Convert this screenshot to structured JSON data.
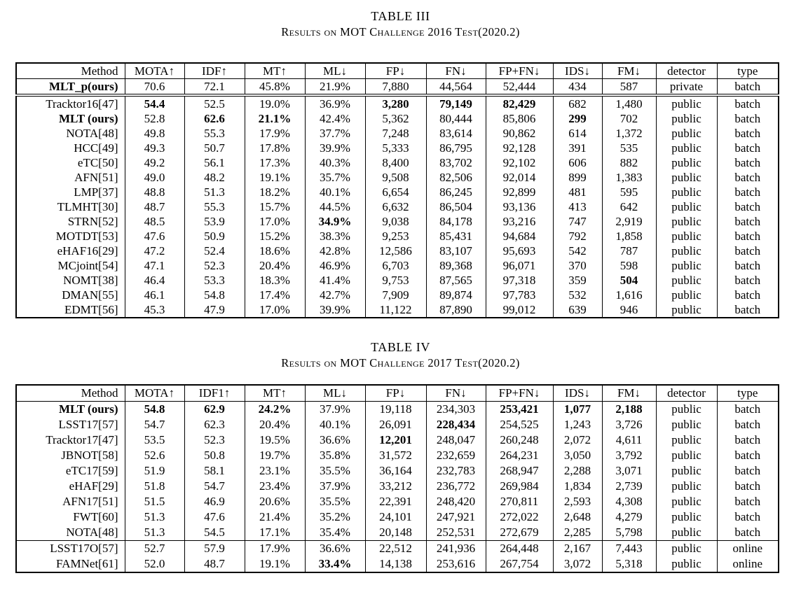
{
  "colors": {
    "text": "#000000",
    "background": "#ffffff",
    "border": "#000000"
  },
  "tables": [
    {
      "caption_title": "TABLE III",
      "caption_subtitle": "Results on MOT Challenge 2016 Test(2020.2)",
      "headers": [
        "Method",
        "MOTA↑",
        "IDF↑",
        "MT↑",
        "ML↓",
        "FP↓",
        "FN↓",
        "FP+FN↓",
        "IDS↓",
        "FM↓",
        "detector",
        "type"
      ],
      "rows": [
        {
          "cells": [
            "MLT_p(ours)",
            "70.6",
            "72.1",
            "45.8%",
            "21.9%",
            "7,880",
            "44,564",
            "52,444",
            "434",
            "587",
            "private",
            "batch"
          ],
          "bold": [
            0
          ],
          "rule_below": "double"
        },
        {
          "cells": [
            "Tracktor16[47]",
            "54.4",
            "52.5",
            "19.0%",
            "36.9%",
            "3,280",
            "79,149",
            "82,429",
            "682",
            "1,480",
            "public",
            "batch"
          ],
          "bold": [
            1,
            5,
            6,
            7
          ]
        },
        {
          "cells": [
            "MLT (ours)",
            "52.8",
            "62.6",
            "21.1%",
            "42.4%",
            "5,362",
            "80,444",
            "85,806",
            "299",
            "702",
            "public",
            "batch"
          ],
          "bold": [
            0,
            2,
            3,
            8
          ]
        },
        {
          "cells": [
            "NOTA[48]",
            "49.8",
            "55.3",
            "17.9%",
            "37.7%",
            "7,248",
            "83,614",
            "90,862",
            "614",
            "1,372",
            "public",
            "batch"
          ],
          "bold": []
        },
        {
          "cells": [
            "HCC[49]",
            "49.3",
            "50.7",
            "17.8%",
            "39.9%",
            "5,333",
            "86,795",
            "92,128",
            "391",
            "535",
            "public",
            "batch"
          ],
          "bold": []
        },
        {
          "cells": [
            "eTC[50]",
            "49.2",
            "56.1",
            "17.3%",
            "40.3%",
            "8,400",
            "83,702",
            "92,102",
            "606",
            "882",
            "public",
            "batch"
          ],
          "bold": []
        },
        {
          "cells": [
            "AFN[51]",
            "49.0",
            "48.2",
            "19.1%",
            "35.7%",
            "9,508",
            "82,506",
            "92,014",
            "899",
            "1,383",
            "public",
            "batch"
          ],
          "bold": []
        },
        {
          "cells": [
            "LMP[37]",
            "48.8",
            "51.3",
            "18.2%",
            "40.1%",
            "6,654",
            "86,245",
            "92,899",
            "481",
            "595",
            "public",
            "batch"
          ],
          "bold": []
        },
        {
          "cells": [
            "TLMHT[30]",
            "48.7",
            "55.3",
            "15.7%",
            "44.5%",
            "6,632",
            "86,504",
            "93,136",
            "413",
            "642",
            "public",
            "batch"
          ],
          "bold": []
        },
        {
          "cells": [
            "STRN[52]",
            "48.5",
            "53.9",
            "17.0%",
            "34.9%",
            "9,038",
            "84,178",
            "93,216",
            "747",
            "2,919",
            "public",
            "batch"
          ],
          "bold": [
            4
          ]
        },
        {
          "cells": [
            "MOTDT[53]",
            "47.6",
            "50.9",
            "15.2%",
            "38.3%",
            "9,253",
            "85,431",
            "94,684",
            "792",
            "1,858",
            "public",
            "batch"
          ],
          "bold": []
        },
        {
          "cells": [
            "eHAF16[29]",
            "47.2",
            "52.4",
            "18.6%",
            "42.8%",
            "12,586",
            "83,107",
            "95,693",
            "542",
            "787",
            "public",
            "batch"
          ],
          "bold": []
        },
        {
          "cells": [
            "MCjoint[54]",
            "47.1",
            "52.3",
            "20.4%",
            "46.9%",
            "6,703",
            "89,368",
            "96,071",
            "370",
            "598",
            "public",
            "batch"
          ],
          "bold": []
        },
        {
          "cells": [
            "NOMT[38]",
            "46.4",
            "53.3",
            "18.3%",
            "41.4%",
            "9,753",
            "87,565",
            "97,318",
            "359",
            "504",
            "public",
            "batch"
          ],
          "bold": [
            9
          ]
        },
        {
          "cells": [
            "DMAN[55]",
            "46.1",
            "54.8",
            "17.4%",
            "42.7%",
            "7,909",
            "89,874",
            "97,783",
            "532",
            "1,616",
            "public",
            "batch"
          ],
          "bold": []
        },
        {
          "cells": [
            "EDMT[56]",
            "45.3",
            "47.9",
            "17.0%",
            "39.9%",
            "11,122",
            "87,890",
            "99,012",
            "639",
            "946",
            "public",
            "batch"
          ],
          "bold": []
        }
      ]
    },
    {
      "caption_title": "TABLE IV",
      "caption_subtitle": "Results on MOT Challenge 2017 Test(2020.2)",
      "headers": [
        "Method",
        "MOTA↑",
        "IDF1↑",
        "MT↑",
        "ML↓",
        "FP↓",
        "FN↓",
        "FP+FN↓",
        "IDS↓",
        "FM↓",
        "detector",
        "type"
      ],
      "rows": [
        {
          "cells": [
            "MLT (ours)",
            "54.8",
            "62.9",
            "24.2%",
            "37.9%",
            "19,118",
            "234,303",
            "253,421",
            "1,077",
            "2,188",
            "public",
            "batch"
          ],
          "bold": [
            0,
            1,
            2,
            3,
            7,
            8,
            9
          ]
        },
        {
          "cells": [
            "LSST17[57]",
            "54.7",
            "62.3",
            "20.4%",
            "40.1%",
            "26,091",
            "228,434",
            "254,525",
            "1,243",
            "3,726",
            "public",
            "batch"
          ],
          "bold": [
            6
          ]
        },
        {
          "cells": [
            "Tracktor17[47]",
            "53.5",
            "52.3",
            "19.5%",
            "36.6%",
            "12,201",
            "248,047",
            "260,248",
            "2,072",
            "4,611",
            "public",
            "batch"
          ],
          "bold": [
            5
          ]
        },
        {
          "cells": [
            "JBNOT[58]",
            "52.6",
            "50.8",
            "19.7%",
            "35.8%",
            "31,572",
            "232,659",
            "264,231",
            "3,050",
            "3,792",
            "public",
            "batch"
          ],
          "bold": []
        },
        {
          "cells": [
            "eTC17[59]",
            "51.9",
            "58.1",
            "23.1%",
            "35.5%",
            "36,164",
            "232,783",
            "268,947",
            "2,288",
            "3,071",
            "public",
            "batch"
          ],
          "bold": []
        },
        {
          "cells": [
            "eHAF[29]",
            "51.8",
            "54.7",
            "23.4%",
            "37.9%",
            "33,212",
            "236,772",
            "269,984",
            "1,834",
            "2,739",
            "public",
            "batch"
          ],
          "bold": []
        },
        {
          "cells": [
            "AFN17[51]",
            "51.5",
            "46.9",
            "20.6%",
            "35.5%",
            "22,391",
            "248,420",
            "270,811",
            "2,593",
            "4,308",
            "public",
            "batch"
          ],
          "bold": []
        },
        {
          "cells": [
            "FWT[60]",
            "51.3",
            "47.6",
            "21.4%",
            "35.2%",
            "24,101",
            "247,921",
            "272,022",
            "2,648",
            "4,279",
            "public",
            "batch"
          ],
          "bold": []
        },
        {
          "cells": [
            "NOTA[48]",
            "51.3",
            "54.5",
            "17.1%",
            "35.4%",
            "20,148",
            "252,531",
            "272,679",
            "2,285",
            "5,798",
            "public",
            "batch"
          ],
          "bold": [],
          "rule_below": "single"
        },
        {
          "cells": [
            "LSST17O[57]",
            "52.7",
            "57.9",
            "17.9%",
            "36.6%",
            "22,512",
            "241,936",
            "264,448",
            "2,167",
            "7,443",
            "public",
            "online"
          ],
          "bold": []
        },
        {
          "cells": [
            "FAMNet[61]",
            "52.0",
            "48.7",
            "19.1%",
            "33.4%",
            "14,138",
            "253,616",
            "267,754",
            "3,072",
            "5,318",
            "public",
            "online"
          ],
          "bold": [
            4
          ]
        }
      ]
    }
  ]
}
